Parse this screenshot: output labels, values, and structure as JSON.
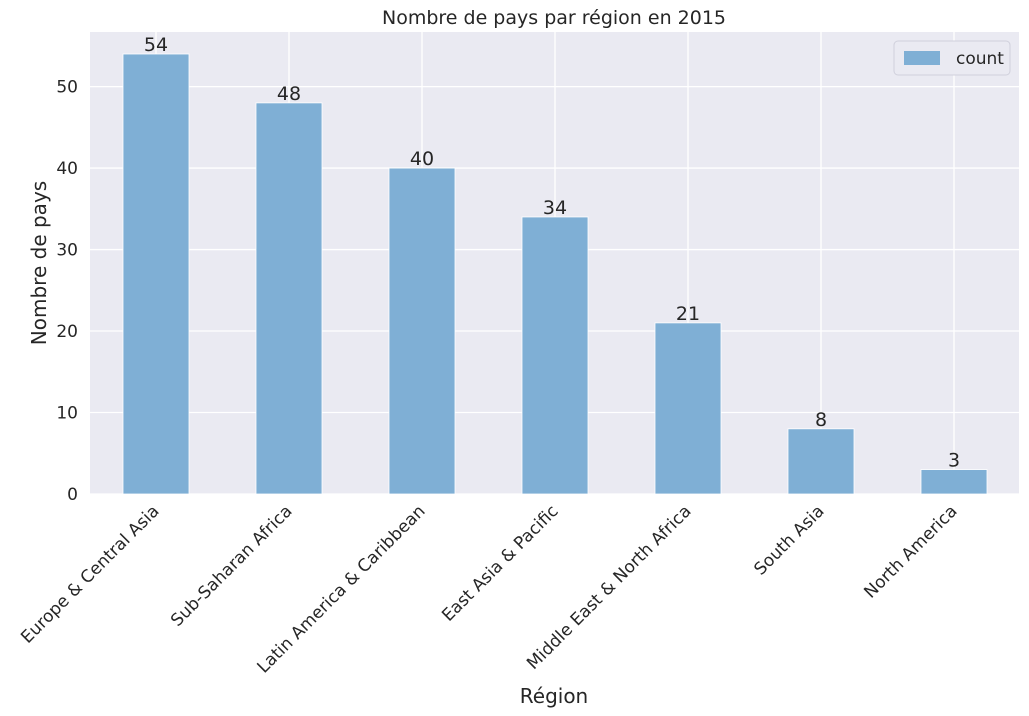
{
  "chart_data": {
    "type": "bar",
    "title": "Nombre de pays par région en 2015",
    "xlabel": "Région",
    "ylabel": "Nombre de pays",
    "categories": [
      "Europe & Central Asia",
      "Sub-Saharan Africa",
      "Latin America & Caribbean",
      "East Asia & Pacific",
      "Middle East & North Africa",
      "South Asia",
      "North America"
    ],
    "series": [
      {
        "name": "count",
        "values": [
          54,
          48,
          40,
          34,
          21,
          8,
          3
        ]
      }
    ],
    "ylim": [
      0,
      56.7
    ],
    "yticks": [
      0,
      10,
      20,
      30,
      40,
      50
    ],
    "grid": true,
    "legend": "top-right",
    "data_labels": true,
    "colors": {
      "bar": "#7fafd5",
      "background": "#eaeaf2",
      "grid": "#ffffff",
      "text": "#262626"
    }
  }
}
